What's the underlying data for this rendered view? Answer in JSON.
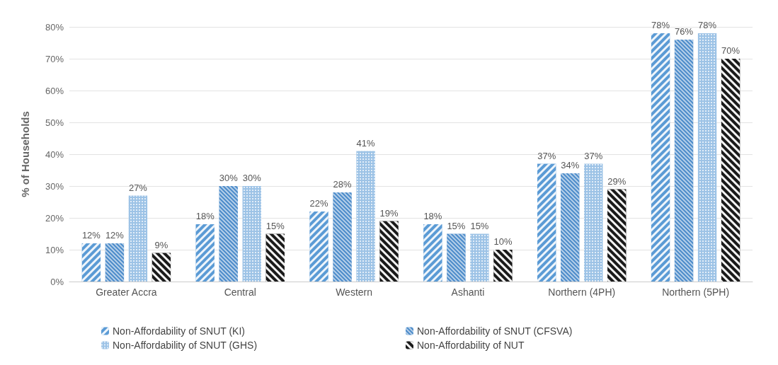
{
  "chart_data": {
    "type": "bar",
    "ylabel": "% of Households",
    "categories": [
      "Greater Accra",
      "Central",
      "Western",
      "Ashanti",
      "Northern (4PH)",
      "Northern (5PH)"
    ],
    "series": [
      {
        "name": "Non-Affordability of SNUT (KI)",
        "color": "#5b9bd5",
        "values": [
          12,
          18,
          22,
          18,
          37,
          78
        ],
        "value_labels": [
          "12%",
          "18%",
          "22%",
          "18%",
          "37%",
          "78%"
        ]
      },
      {
        "name": "Non-Affordability of SNUT (CFSVA)",
        "color": "#4a8ac9",
        "values": [
          12,
          30,
          28,
          15,
          34,
          76
        ],
        "value_labels": [
          "12%",
          "30%",
          "28%",
          "15%",
          "34%",
          "76%"
        ]
      },
      {
        "name": "Non-Affordability of SNUT (GHS)",
        "color": "#9dc3e6",
        "values": [
          27,
          30,
          41,
          15,
          37,
          78
        ],
        "value_labels": [
          "27%",
          "30%",
          "41%",
          "15%",
          "37%",
          "78%"
        ]
      },
      {
        "name": "Non-Affordability of NUT",
        "color": "#1a1a1a",
        "values": [
          9,
          15,
          19,
          10,
          29,
          70
        ],
        "value_labels": [
          "9%",
          "15%",
          "19%",
          "10%",
          "29%",
          "70%"
        ]
      }
    ],
    "ylim": [
      0,
      80
    ],
    "yticks": [
      {
        "value": 0,
        "label": "0%"
      },
      {
        "value": 10,
        "label": "10%"
      },
      {
        "value": 20,
        "label": "20%"
      },
      {
        "value": 30,
        "label": "30%"
      },
      {
        "value": 40,
        "label": "40%"
      },
      {
        "value": 50,
        "label": "50%"
      },
      {
        "value": 60,
        "label": "60%"
      },
      {
        "value": 70,
        "label": "70%"
      },
      {
        "value": 80,
        "label": "80%"
      }
    ],
    "grid": "y",
    "legend": "bottom"
  }
}
